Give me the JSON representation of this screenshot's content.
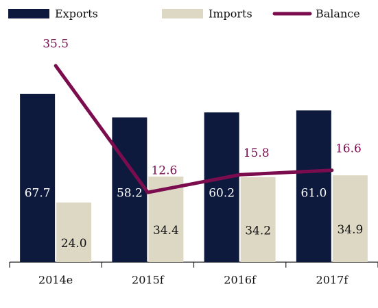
{
  "chart_data": {
    "type": "bar",
    "categories": [
      "2014e",
      "2015f",
      "2016f",
      "2017f"
    ],
    "series": [
      {
        "name": "Exports",
        "color": "#0d1a3d",
        "values": [
          67.7,
          58.2,
          60.2,
          61
        ],
        "value_labels": [
          "67.7",
          "58.2",
          "60.2",
          "61.0"
        ]
      },
      {
        "name": "Imports",
        "color": "#ddd8c4",
        "values": [
          24,
          34.4,
          34.2,
          34.9
        ],
        "value_labels": [
          "24.0",
          "34.4",
          "34.2",
          "34.9"
        ]
      },
      {
        "name": "Balance",
        "type": "line",
        "color": "#7b0d4f",
        "values": [
          35.5,
          12.6,
          15.8,
          16.6
        ]
      }
    ]
  }
}
